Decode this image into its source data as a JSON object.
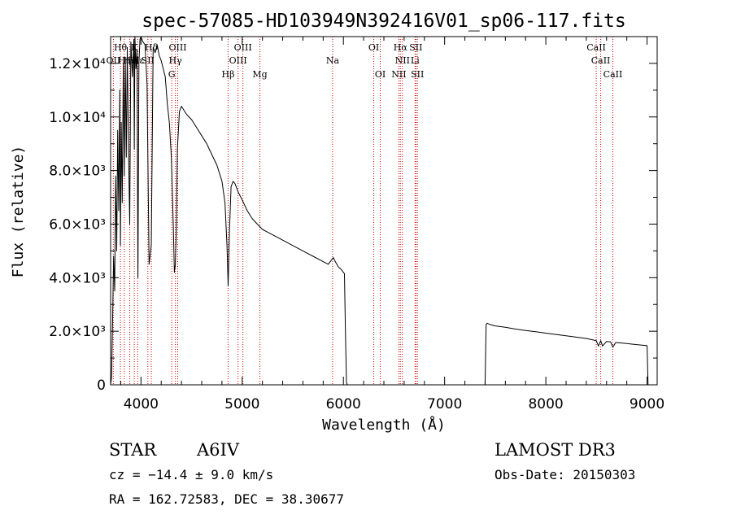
{
  "chart_data": {
    "type": "line",
    "title": "spec-57085-HD103949N392416V01_sp06-117.fits",
    "xlabel": "Wavelength (Å)",
    "ylabel": "Flux (relative)",
    "xlim": [
      3700,
      9100
    ],
    "ylim": [
      0,
      13000
    ],
    "grid": false,
    "xticks": [
      {
        "value": 4000,
        "label": "4000"
      },
      {
        "value": 5000,
        "label": "5000"
      },
      {
        "value": 6000,
        "label": "6000"
      },
      {
        "value": 7000,
        "label": "7000"
      },
      {
        "value": 8000,
        "label": "8000"
      },
      {
        "value": 9000,
        "label": "9000"
      }
    ],
    "yticks": [
      {
        "value": 0,
        "label": "0"
      },
      {
        "value": 2000,
        "label": "2.0×10³"
      },
      {
        "value": 4000,
        "label": "4.0×10³"
      },
      {
        "value": 6000,
        "label": "6.0×10³"
      },
      {
        "value": 8000,
        "label": "8.0×10³"
      },
      {
        "value": 10000,
        "label": "1.0×10⁴"
      },
      {
        "value": 12000,
        "label": "1.2×10⁴"
      }
    ],
    "series": [
      {
        "name": "flux",
        "color": "#000000",
        "x": [
          3700,
          3710,
          3720,
          3730,
          3740,
          3750,
          3760,
          3770,
          3780,
          3790,
          3797,
          3805,
          3815,
          3825,
          3835,
          3845,
          3855,
          3865,
          3875,
          3889,
          3900,
          3915,
          3930,
          3934,
          3940,
          3950,
          3960,
          3970,
          3980,
          3990,
          4000,
          4020,
          4040,
          4060,
          4080,
          4102,
          4120,
          4140,
          4160,
          4180,
          4200,
          4220,
          4240,
          4260,
          4280,
          4300,
          4320,
          4330,
          4340,
          4350,
          4360,
          4380,
          4400,
          4450,
          4500,
          4550,
          4600,
          4650,
          4700,
          4750,
          4800,
          4830,
          4850,
          4861,
          4875,
          4890,
          4910,
          4930,
          4960,
          5000,
          5050,
          5100,
          5150,
          5200,
          5250,
          5300,
          5400,
          5500,
          5600,
          5700,
          5800,
          5850,
          5880,
          5900,
          5920,
          5950,
          5980,
          6010,
          6020,
          6030,
          6040,
          6060,
          6100,
          6500,
          7000,
          7400,
          7410,
          7420,
          7450,
          7500,
          7600,
          7700,
          7800,
          7900,
          8000,
          8100,
          8200,
          8300,
          8400,
          8498,
          8520,
          8542,
          8560,
          8600,
          8640,
          8662,
          8690,
          8750,
          8800,
          8850,
          8900,
          8950,
          9000,
          9010
        ],
        "values": [
          0,
          300,
          2500,
          4800,
          3500,
          7800,
          5000,
          9500,
          6500,
          11000,
          5200,
          9800,
          6800,
          12000,
          7800,
          12200,
          8500,
          12600,
          9200,
          6000,
          12800,
          11500,
          12900,
          8800,
          13000,
          11800,
          12500,
          4000,
          12000,
          12900,
          13000,
          12800,
          12700,
          11200,
          4500,
          5200,
          12600,
          12400,
          12700,
          12300,
          12100,
          11800,
          11500,
          10500,
          9800,
          8500,
          5800,
          4200,
          4500,
          6000,
          8800,
          10200,
          10400,
          10100,
          9900,
          9600,
          9300,
          9000,
          8600,
          8200,
          7600,
          6800,
          5200,
          3700,
          5800,
          7400,
          7600,
          7500,
          7200,
          6900,
          6500,
          6200,
          6000,
          5800,
          5700,
          5600,
          5400,
          5200,
          5000,
          4800,
          4600,
          4500,
          4650,
          4750,
          4600,
          4400,
          4300,
          4150,
          2000,
          80,
          0,
          0,
          0,
          0,
          0,
          0,
          2250,
          2300,
          2250,
          2200,
          2150,
          2080,
          2030,
          1980,
          1930,
          1880,
          1830,
          1780,
          1730,
          1650,
          1450,
          1650,
          1450,
          1620,
          1600,
          1400,
          1580,
          1560,
          1540,
          1520,
          1500,
          1480,
          1460,
          0
        ]
      }
    ],
    "lines": [
      {
        "name": "OII-3727",
        "x": 3727
      },
      {
        "name": "Hθ",
        "x": 3797
      },
      {
        "name": "Hη",
        "x": 3835
      },
      {
        "name": "HeI",
        "x": 3889
      },
      {
        "name": "K",
        "x": 3934
      },
      {
        "name": "H",
        "x": 3968
      },
      {
        "name": "SII-4068",
        "x": 4068
      },
      {
        "name": "Hδ",
        "x": 4102
      },
      {
        "name": "G",
        "x": 4304
      },
      {
        "name": "Hγ",
        "x": 4340
      },
      {
        "name": "OIII-4363",
        "x": 4363
      },
      {
        "name": "Hβ",
        "x": 4861
      },
      {
        "name": "OIII-4959",
        "x": 4959
      },
      {
        "name": "OIII-5007",
        "x": 5007
      },
      {
        "name": "Mg",
        "x": 5175
      },
      {
        "name": "Na",
        "x": 5893
      },
      {
        "name": "OI-6300",
        "x": 6300
      },
      {
        "name": "OI-6364",
        "x": 6364
      },
      {
        "name": "NII-6548",
        "x": 6548
      },
      {
        "name": "Hα",
        "x": 6563
      },
      {
        "name": "NII-6583",
        "x": 6583
      },
      {
        "name": "Li",
        "x": 6708
      },
      {
        "name": "SII-6716",
        "x": 6716
      },
      {
        "name": "SII-6731",
        "x": 6731
      },
      {
        "name": "CaII-8498",
        "x": 8498
      },
      {
        "name": "CaII-8542",
        "x": 8542
      },
      {
        "name": "CaII-8662",
        "x": 8662
      }
    ],
    "line_labels": [
      {
        "text": "Hθ",
        "x": 3797,
        "row": 1
      },
      {
        "text": "OII",
        "x": 3727,
        "row": 2
      },
      {
        "text": "Hη",
        "x": 3835,
        "row": 2
      },
      {
        "text": "K",
        "x": 3934,
        "row": 1
      },
      {
        "text": "He",
        "x": 3889,
        "row": 2
      },
      {
        "text": "Hε",
        "x": 3970,
        "row": 2
      },
      {
        "text": "SII",
        "x": 4068,
        "row": 2
      },
      {
        "text": "Hδ",
        "x": 4102,
        "row": 1
      },
      {
        "text": "OIII",
        "x": 4363,
        "row": 1
      },
      {
        "text": "Hγ",
        "x": 4340,
        "row": 2
      },
      {
        "text": "G",
        "x": 4304,
        "row": 3
      },
      {
        "text": "OIII",
        "x": 5007,
        "row": 1
      },
      {
        "text": "OIII",
        "x": 4959,
        "row": 2
      },
      {
        "text": "Hβ",
        "x": 4861,
        "row": 3
      },
      {
        "text": "Mg",
        "x": 5175,
        "row": 3
      },
      {
        "text": "Na",
        "x": 5893,
        "row": 2
      },
      {
        "text": "OI",
        "x": 6300,
        "row": 1
      },
      {
        "text": "OI",
        "x": 6364,
        "row": 3
      },
      {
        "text": "Hα",
        "x": 6563,
        "row": 1
      },
      {
        "text": "SII",
        "x": 6716,
        "row": 1
      },
      {
        "text": "NII",
        "x": 6583,
        "row": 2
      },
      {
        "text": "Li",
        "x": 6708,
        "row": 2
      },
      {
        "text": "NII",
        "x": 6548,
        "row": 3
      },
      {
        "text": "SII",
        "x": 6731,
        "row": 3
      },
      {
        "text": "CaII",
        "x": 8498,
        "row": 1
      },
      {
        "text": "CaII",
        "x": 8542,
        "row": 2
      },
      {
        "text": "CaII",
        "x": 8662,
        "row": 3
      }
    ]
  },
  "info": {
    "object_class": "STAR",
    "subclass": "A6IV",
    "survey": "LAMOST DR3",
    "cz": "cz = −14.4 ± 9.0 km/s",
    "obs_date": "Obs-Date: 20150303",
    "coords": "RA = 162.72583, DEC =  38.30677"
  },
  "colors": {
    "spectrum": "#000000",
    "line_marker": "#cc0000",
    "axis": "#000000",
    "background": "#ffffff"
  }
}
